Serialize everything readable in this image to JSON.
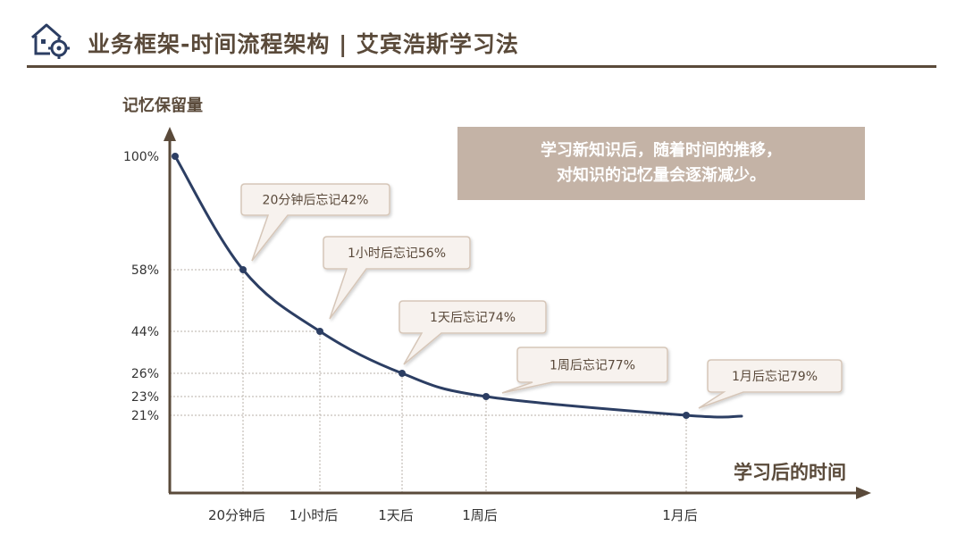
{
  "header": {
    "title": "业务框架-时间流程架构 | 艾宾浩斯学习法"
  },
  "info_box": {
    "line1": "学习新知识后，随着时间的推移，",
    "line2": "对知识的记忆量会逐渐减少。"
  },
  "colors": {
    "accent": "#5a4a3a",
    "curve": "#2c3e63",
    "callout_fill": "#f7f2ee",
    "callout_stroke": "#d6c6b8",
    "info_box": "#c4b3a6"
  },
  "chart_data": {
    "type": "line",
    "title": "",
    "ylabel": "记忆保留量",
    "xlabel": "学习后的时间",
    "y_ticks": [
      {
        "value": 100,
        "label": "100%"
      },
      {
        "value": 58,
        "label": "58%"
      },
      {
        "value": 44,
        "label": "44%"
      },
      {
        "value": 26,
        "label": "26%"
      },
      {
        "value": 23,
        "label": "23%"
      },
      {
        "value": 21,
        "label": "21%"
      }
    ],
    "points": [
      {
        "x": "0",
        "y": 100,
        "label": ""
      },
      {
        "x": "20分钟后",
        "y": 58,
        "label": "20分钟后"
      },
      {
        "x": "1小时后",
        "y": 44,
        "label": "1小时后"
      },
      {
        "x": "1天后",
        "y": 26,
        "label": "1天后"
      },
      {
        "x": "1周后",
        "y": 23,
        "label": "1周后"
      },
      {
        "x": "1月后",
        "y": 21,
        "label": "1月后"
      }
    ],
    "callouts": [
      {
        "text": "20分钟后忘记42%",
        "point": 1
      },
      {
        "text": "1小时后忘记56%",
        "point": 2
      },
      {
        "text": "1天后忘记74%",
        "point": 3
      },
      {
        "text": "1周后忘记77%",
        "point": 4
      },
      {
        "text": "1月后忘记79%",
        "point": 5
      }
    ],
    "grid": "dotted guides at each data point"
  }
}
